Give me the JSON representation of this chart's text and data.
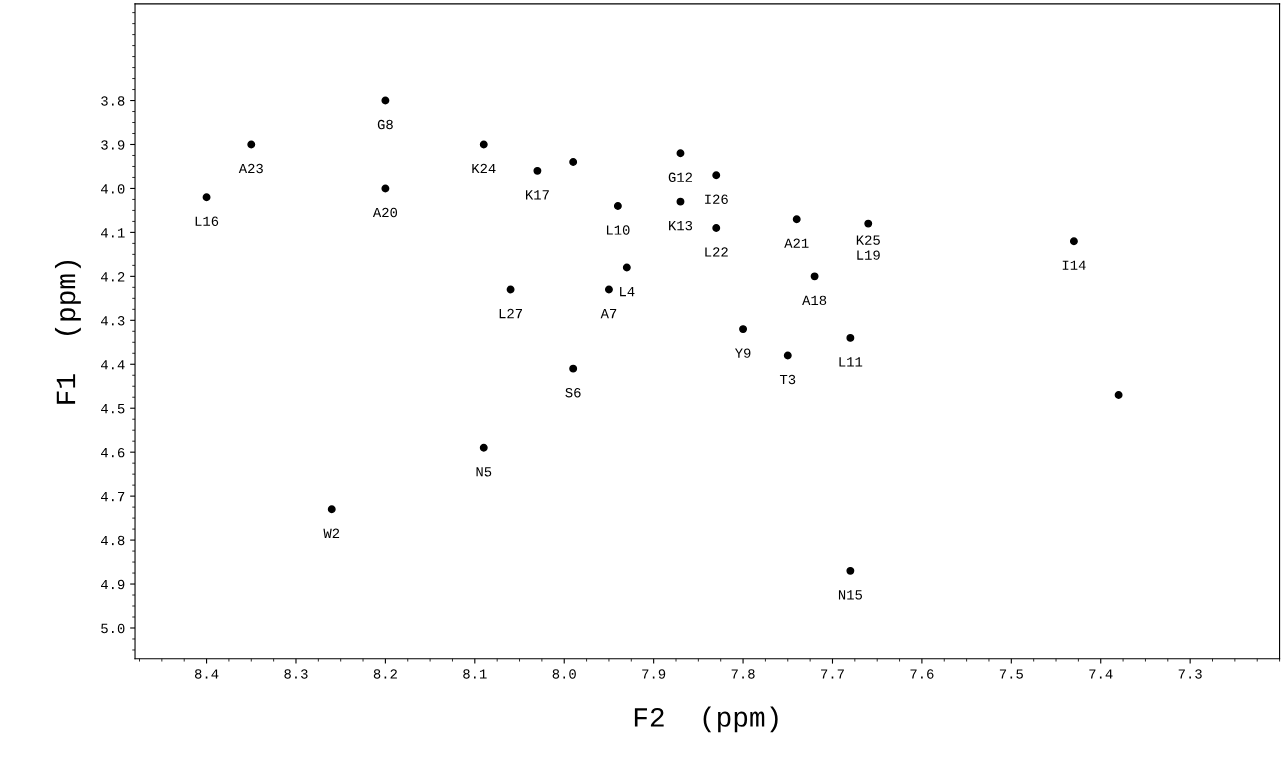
{
  "chart_data": {
    "type": "scatter",
    "xlabel": "F2  (ppm)",
    "ylabel": "F1  (ppm)",
    "xlim": [
      8.48,
      7.2
    ],
    "ylim": [
      5.07,
      3.58
    ],
    "xticks": [
      8.4,
      8.3,
      8.2,
      8.1,
      {
        "value": 8,
        "label": "8.0"
      },
      7.9,
      7.8,
      7.7,
      7.6,
      7.5,
      7.4,
      7.3
    ],
    "yticks": [
      3.8,
      3.9,
      {
        "value": 4,
        "label": "4.0"
      },
      4.1,
      4.2,
      4.3,
      4.4,
      4.5,
      4.6,
      4.7,
      4.8,
      4.9,
      {
        "value": 5,
        "label": "5.0"
      }
    ],
    "grid": false,
    "marker": "circle",
    "series": [
      {
        "color": "#000000",
        "x": [
          8.4,
          8.35,
          8.2,
          8.2,
          8.26,
          8.09,
          8.03,
          7.99,
          7.94,
          7.87,
          7.83,
          7.83,
          7.87,
          7.93,
          7.95,
          8.06,
          7.99,
          8.09,
          7.74,
          7.8,
          7.75,
          7.68,
          7.66,
          7.72,
          7.43,
          7.38,
          7.68
        ],
        "values": [
          4.02,
          3.9,
          3.8,
          4.0,
          4.73,
          3.9,
          3.96,
          3.94,
          4.04,
          3.92,
          3.97,
          4.09,
          4.03,
          4.18,
          4.23,
          4.23,
          4.41,
          4.59,
          4.07,
          4.32,
          4.38,
          4.34,
          4.08,
          4.2,
          4.12,
          4.47,
          4.87
        ]
      }
    ],
    "annotations": [
      {
        "text": "L16",
        "x": 8.4,
        "y": 4.02
      },
      {
        "text": "A23",
        "x": 8.35,
        "y": 3.9
      },
      {
        "text": "G8",
        "x": 8.2,
        "y": 3.8
      },
      {
        "text": "A20",
        "x": 8.2,
        "y": 4.0
      },
      {
        "text": "W2",
        "x": 8.26,
        "y": 4.73
      },
      {
        "text": "K24",
        "x": 8.09,
        "y": 3.9
      },
      {
        "text": "K17",
        "x": 8.03,
        "y": 3.96
      },
      {
        "text": "L10",
        "x": 7.94,
        "y": 4.04
      },
      {
        "text": "G12",
        "x": 7.87,
        "y": 3.92
      },
      {
        "text": "I26",
        "x": 7.83,
        "y": 3.97
      },
      {
        "text": "L22",
        "x": 7.83,
        "y": 4.09
      },
      {
        "text": "K13",
        "x": 7.87,
        "y": 4.03
      },
      {
        "text": "L4",
        "x": 7.93,
        "y": 4.18
      },
      {
        "text": "A7",
        "x": 7.95,
        "y": 4.23
      },
      {
        "text": "L27",
        "x": 8.06,
        "y": 4.23
      },
      {
        "text": "S6",
        "x": 7.99,
        "y": 4.41
      },
      {
        "text": "N5",
        "x": 8.09,
        "y": 4.59
      },
      {
        "text": "A21",
        "x": 7.74,
        "y": 4.07
      },
      {
        "text": "Y9",
        "x": 7.8,
        "y": 4.32
      },
      {
        "text": "T3",
        "x": 7.75,
        "y": 4.38
      },
      {
        "text": "L11",
        "x": 7.68,
        "y": 4.34
      },
      {
        "text": "K25\nL19",
        "x": 7.66,
        "y": 4.08
      },
      {
        "text": "A18",
        "x": 7.72,
        "y": 4.2
      },
      {
        "text": "I14",
        "x": 7.43,
        "y": 4.12
      },
      {
        "text": "N15",
        "x": 7.68,
        "y": 4.87
      }
    ]
  }
}
